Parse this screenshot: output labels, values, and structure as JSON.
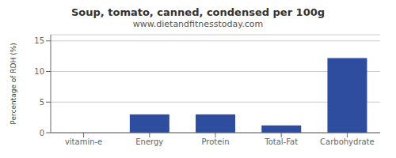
{
  "chart_data": {
    "type": "bar",
    "title": "Soup, tomato, canned, condensed per 100g",
    "subtitle": "www.dietandfitnesstoday.com",
    "categories": [
      "vitamin-e",
      "Energy",
      "Protein",
      "Total-Fat",
      "Carbohydrate"
    ],
    "values": [
      0,
      3.0,
      3.0,
      1.2,
      12.2
    ],
    "color": "#2e4d9e",
    "ylabel": "Percentage of RDH (%)",
    "ylim": [
      0,
      16
    ],
    "yticks": [
      0,
      5,
      10,
      15
    ],
    "grid": true
  }
}
